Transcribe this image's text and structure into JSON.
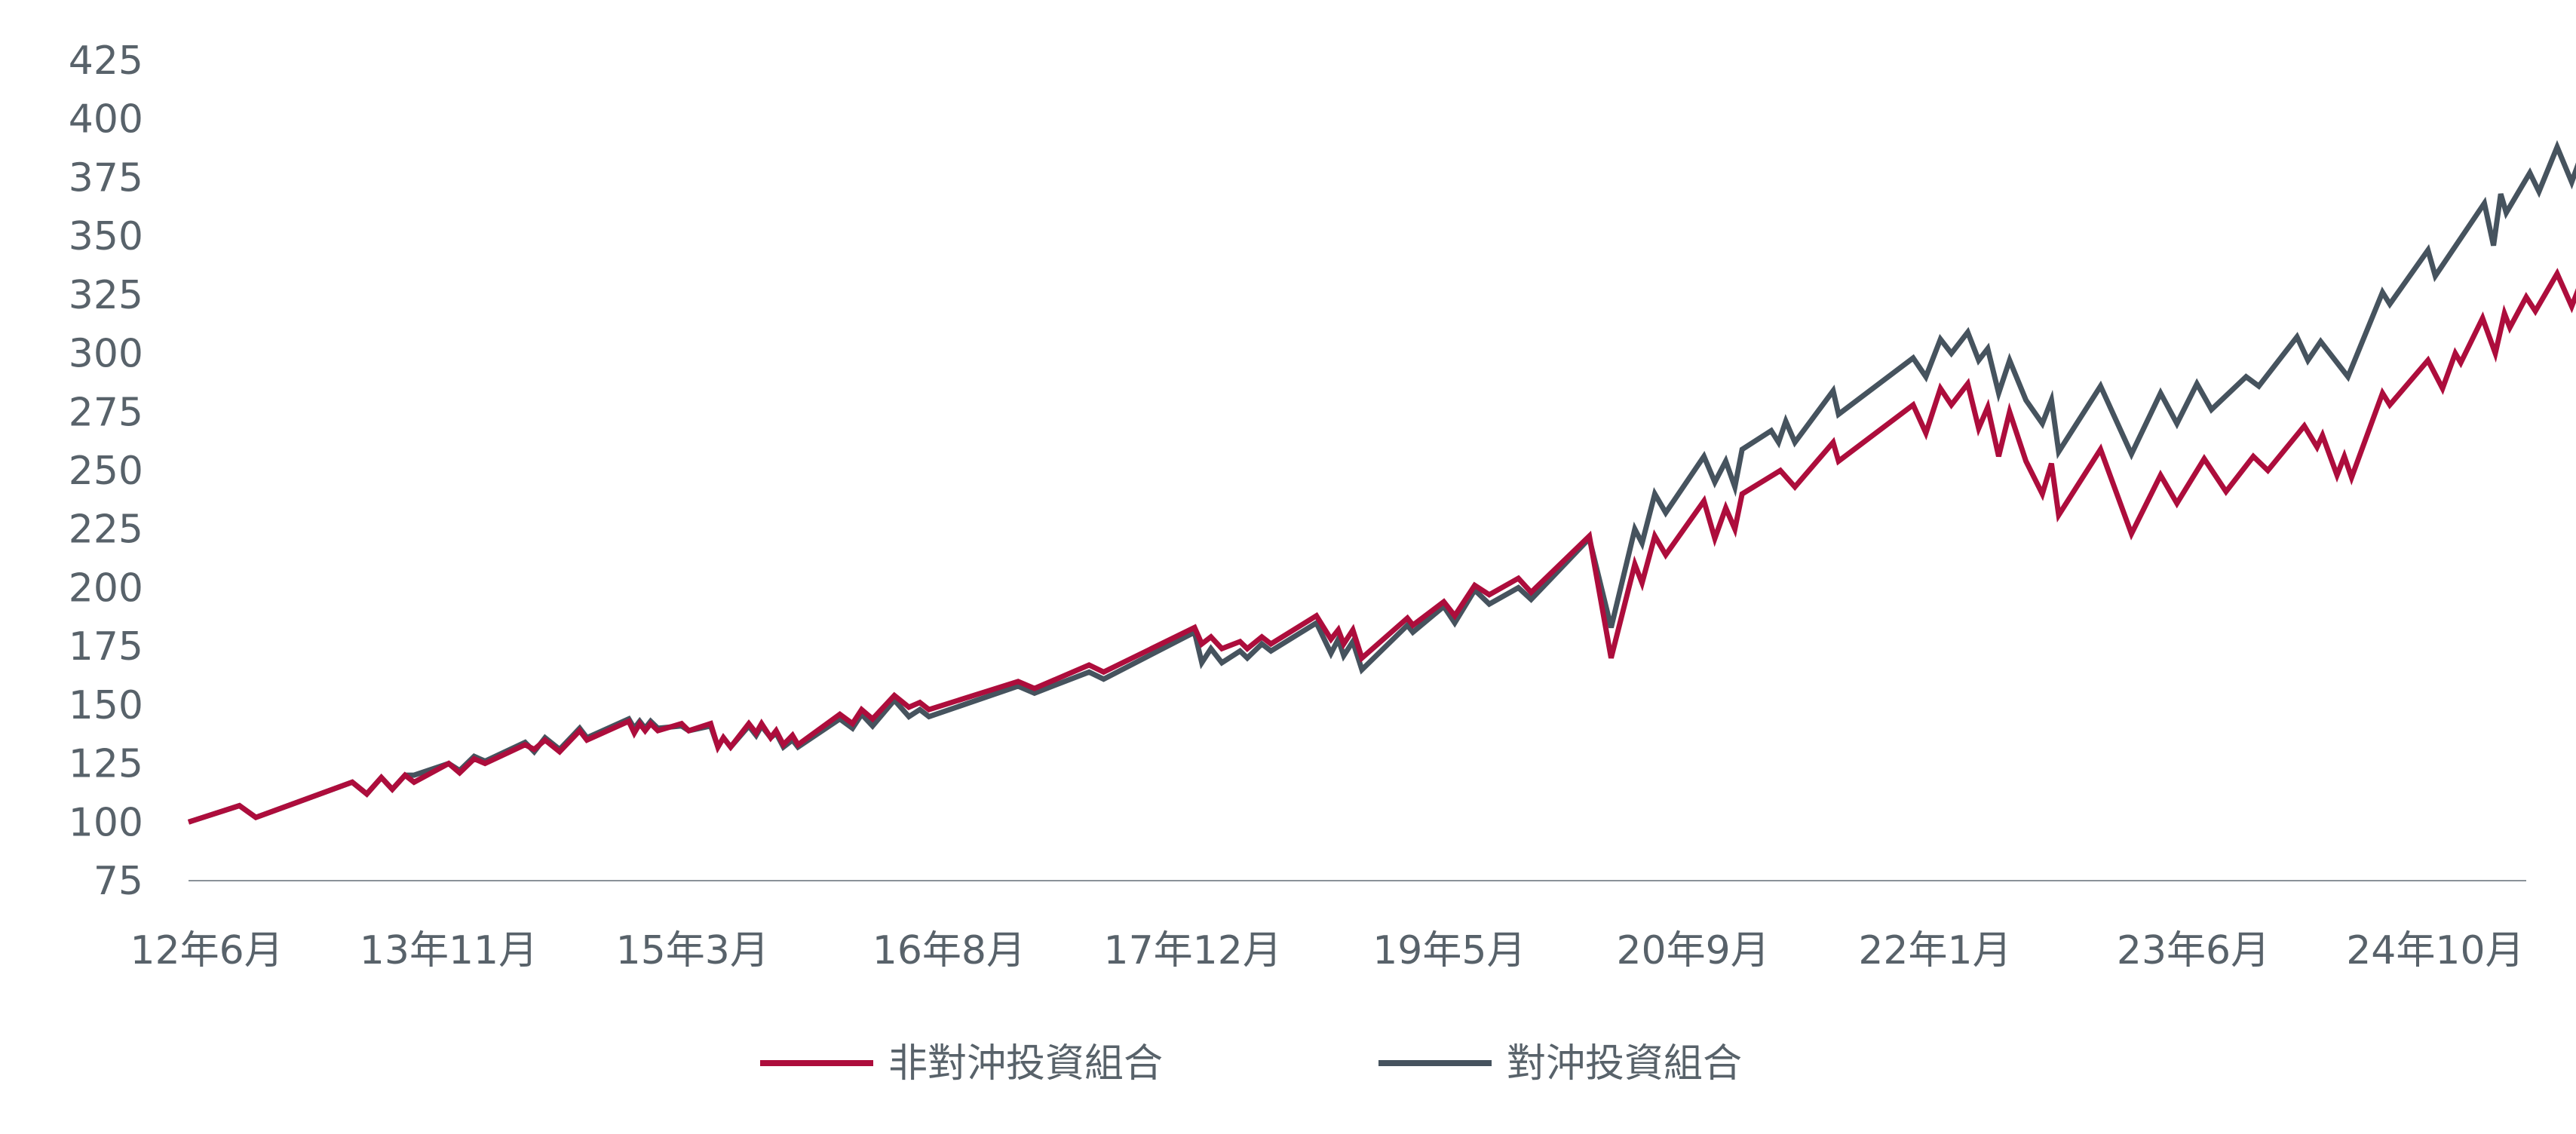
{
  "chart_data": {
    "type": "line",
    "title": "",
    "xlabel": "",
    "ylabel": "",
    "ylim": [
      75,
      425
    ],
    "yticks": [
      75,
      100,
      125,
      150,
      175,
      200,
      225,
      250,
      275,
      300,
      325,
      350,
      375,
      400,
      425
    ],
    "xlim": [
      2012.4,
      2025.25
    ],
    "xticks": [
      {
        "label": "12年6月",
        "x": 2012.5
      },
      {
        "label": "13年11月",
        "x": 2013.83
      },
      {
        "label": "15年3月",
        "x": 2015.17
      },
      {
        "label": "16年8月",
        "x": 2016.58
      },
      {
        "label": "17年12月",
        "x": 2017.92
      },
      {
        "label": "19年5月",
        "x": 2019.33
      },
      {
        "label": "20年9月",
        "x": 2020.67
      },
      {
        "label": "22年1月",
        "x": 2022.0
      },
      {
        "label": "23年6月",
        "x": 2023.42
      },
      {
        "label": "24年10月",
        "x": 2024.75
      }
    ],
    "grid": false,
    "legend_position": "bottom",
    "series": [
      {
        "name": "非對沖投資組合",
        "color": "#ad0d3c",
        "points": [
          [
            2012.4,
            100
          ],
          [
            2012.68,
            107
          ],
          [
            2012.77,
            102
          ],
          [
            2013.3,
            117
          ],
          [
            2013.38,
            112
          ],
          [
            2013.46,
            119
          ],
          [
            2013.52,
            114
          ],
          [
            2013.59,
            120
          ],
          [
            2013.64,
            117
          ],
          [
            2013.83,
            125
          ],
          [
            2013.89,
            121
          ],
          [
            2013.97,
            127
          ],
          [
            2014.03,
            125
          ],
          [
            2014.25,
            133
          ],
          [
            2014.3,
            131
          ],
          [
            2014.36,
            135
          ],
          [
            2014.44,
            130
          ],
          [
            2014.55,
            139
          ],
          [
            2014.59,
            135
          ],
          [
            2014.82,
            143
          ],
          [
            2014.85,
            138
          ],
          [
            2014.88,
            142
          ],
          [
            2014.91,
            139
          ],
          [
            2014.94,
            142
          ],
          [
            2014.98,
            139
          ],
          [
            2015.11,
            142
          ],
          [
            2015.15,
            139
          ],
          [
            2015.27,
            142
          ],
          [
            2015.31,
            132
          ],
          [
            2015.34,
            136
          ],
          [
            2015.38,
            132
          ],
          [
            2015.48,
            142
          ],
          [
            2015.52,
            138
          ],
          [
            2015.55,
            142
          ],
          [
            2015.6,
            136
          ],
          [
            2015.63,
            139
          ],
          [
            2015.67,
            133
          ],
          [
            2015.72,
            137
          ],
          [
            2015.75,
            133
          ],
          [
            2015.98,
            146
          ],
          [
            2016.05,
            142
          ],
          [
            2016.1,
            148
          ],
          [
            2016.16,
            144
          ],
          [
            2016.28,
            154
          ],
          [
            2016.36,
            149
          ],
          [
            2016.42,
            151
          ],
          [
            2016.47,
            148
          ],
          [
            2016.96,
            160
          ],
          [
            2017.05,
            157
          ],
          [
            2017.35,
            167
          ],
          [
            2017.43,
            164
          ],
          [
            2017.93,
            183
          ],
          [
            2017.97,
            176
          ],
          [
            2018.02,
            179
          ],
          [
            2018.08,
            174
          ],
          [
            2018.18,
            177
          ],
          [
            2018.22,
            174
          ],
          [
            2018.3,
            179
          ],
          [
            2018.35,
            176
          ],
          [
            2018.6,
            188
          ],
          [
            2018.68,
            178
          ],
          [
            2018.72,
            182
          ],
          [
            2018.75,
            176
          ],
          [
            2018.8,
            182
          ],
          [
            2018.85,
            170
          ],
          [
            2019.1,
            187
          ],
          [
            2019.13,
            184
          ],
          [
            2019.3,
            194
          ],
          [
            2019.36,
            188
          ],
          [
            2019.47,
            201
          ],
          [
            2019.55,
            197
          ],
          [
            2019.71,
            204
          ],
          [
            2019.78,
            198
          ],
          [
            2020.1,
            222
          ],
          [
            2020.22,
            170
          ],
          [
            2020.35,
            210
          ],
          [
            2020.39,
            202
          ],
          [
            2020.46,
            222
          ],
          [
            2020.52,
            214
          ],
          [
            2020.73,
            237
          ],
          [
            2020.79,
            221
          ],
          [
            2020.85,
            234
          ],
          [
            2020.9,
            225
          ],
          [
            2020.94,
            240
          ],
          [
            2021.15,
            250
          ],
          [
            2021.23,
            243
          ],
          [
            2021.44,
            262
          ],
          [
            2021.47,
            254
          ],
          [
            2021.88,
            278
          ],
          [
            2021.95,
            266
          ],
          [
            2022.03,
            285
          ],
          [
            2022.09,
            278
          ],
          [
            2022.18,
            287
          ],
          [
            2022.24,
            268
          ],
          [
            2022.29,
            277
          ],
          [
            2022.35,
            256
          ],
          [
            2022.41,
            275
          ],
          [
            2022.5,
            254
          ],
          [
            2022.59,
            240
          ],
          [
            2022.64,
            253
          ],
          [
            2022.68,
            231
          ],
          [
            2022.91,
            259
          ],
          [
            2023.08,
            223
          ],
          [
            2023.24,
            248
          ],
          [
            2023.33,
            236
          ],
          [
            2023.48,
            255
          ],
          [
            2023.6,
            241
          ],
          [
            2023.75,
            256
          ],
          [
            2023.83,
            250
          ],
          [
            2024.03,
            269
          ],
          [
            2024.1,
            260
          ],
          [
            2024.13,
            265
          ],
          [
            2024.21,
            248
          ],
          [
            2024.25,
            256
          ],
          [
            2024.29,
            247
          ],
          [
            2024.46,
            283
          ],
          [
            2024.5,
            278
          ],
          [
            2024.71,
            297
          ],
          [
            2024.79,
            285
          ],
          [
            2024.86,
            300
          ],
          [
            2024.89,
            296
          ],
          [
            2025.01,
            315
          ],
          [
            2025.08,
            300
          ],
          [
            2025.13,
            317
          ],
          [
            2025.16,
            311
          ],
          [
            2025.25,
            324
          ],
          [
            2025.3,
            318
          ],
          [
            2025.42,
            334
          ],
          [
            2025.5,
            320
          ],
          [
            2025.57,
            334
          ]
        ]
      },
      {
        "name": "對沖投資組合",
        "color": "#46535e",
        "points": [
          [
            2012.4,
            100
          ],
          [
            2012.68,
            107
          ],
          [
            2012.77,
            102
          ],
          [
            2013.3,
            117
          ],
          [
            2013.38,
            112
          ],
          [
            2013.46,
            119
          ],
          [
            2013.52,
            114
          ],
          [
            2013.59,
            120
          ],
          [
            2013.64,
            120
          ],
          [
            2013.83,
            125
          ],
          [
            2013.89,
            122
          ],
          [
            2013.97,
            128
          ],
          [
            2014.03,
            126
          ],
          [
            2014.25,
            134
          ],
          [
            2014.3,
            130
          ],
          [
            2014.36,
            136
          ],
          [
            2014.44,
            131
          ],
          [
            2014.55,
            140
          ],
          [
            2014.59,
            136
          ],
          [
            2014.82,
            144
          ],
          [
            2014.85,
            140
          ],
          [
            2014.88,
            143
          ],
          [
            2014.91,
            140
          ],
          [
            2014.94,
            143
          ],
          [
            2014.98,
            140
          ],
          [
            2015.11,
            141
          ],
          [
            2015.15,
            139
          ],
          [
            2015.27,
            141
          ],
          [
            2015.31,
            132
          ],
          [
            2015.34,
            136
          ],
          [
            2015.38,
            132
          ],
          [
            2015.48,
            141
          ],
          [
            2015.52,
            137
          ],
          [
            2015.55,
            141
          ],
          [
            2015.6,
            136
          ],
          [
            2015.63,
            138
          ],
          [
            2015.67,
            132
          ],
          [
            2015.72,
            135
          ],
          [
            2015.75,
            132
          ],
          [
            2015.98,
            144
          ],
          [
            2016.05,
            140
          ],
          [
            2016.1,
            146
          ],
          [
            2016.16,
            141
          ],
          [
            2016.28,
            152
          ],
          [
            2016.36,
            145
          ],
          [
            2016.42,
            148
          ],
          [
            2016.47,
            145
          ],
          [
            2016.96,
            158
          ],
          [
            2017.05,
            155
          ],
          [
            2017.35,
            164
          ],
          [
            2017.43,
            161
          ],
          [
            2017.93,
            181
          ],
          [
            2017.97,
            168
          ],
          [
            2018.02,
            174
          ],
          [
            2018.08,
            168
          ],
          [
            2018.18,
            173
          ],
          [
            2018.22,
            170
          ],
          [
            2018.3,
            176
          ],
          [
            2018.35,
            173
          ],
          [
            2018.6,
            185
          ],
          [
            2018.68,
            172
          ],
          [
            2018.72,
            178
          ],
          [
            2018.75,
            171
          ],
          [
            2018.8,
            177
          ],
          [
            2018.85,
            165
          ],
          [
            2019.1,
            184
          ],
          [
            2019.13,
            181
          ],
          [
            2019.3,
            192
          ],
          [
            2019.36,
            185
          ],
          [
            2019.47,
            199
          ],
          [
            2019.55,
            193
          ],
          [
            2019.71,
            200
          ],
          [
            2019.78,
            195
          ],
          [
            2020.1,
            221
          ],
          [
            2020.22,
            183
          ],
          [
            2020.35,
            225
          ],
          [
            2020.39,
            219
          ],
          [
            2020.46,
            240
          ],
          [
            2020.52,
            232
          ],
          [
            2020.73,
            256
          ],
          [
            2020.79,
            245
          ],
          [
            2020.85,
            254
          ],
          [
            2020.9,
            243
          ],
          [
            2020.94,
            259
          ],
          [
            2021.1,
            267
          ],
          [
            2021.14,
            262
          ],
          [
            2021.18,
            271
          ],
          [
            2021.23,
            262
          ],
          [
            2021.44,
            284
          ],
          [
            2021.47,
            274
          ],
          [
            2021.88,
            298
          ],
          [
            2021.95,
            290
          ],
          [
            2022.03,
            306
          ],
          [
            2022.09,
            300
          ],
          [
            2022.18,
            309
          ],
          [
            2022.24,
            297
          ],
          [
            2022.29,
            302
          ],
          [
            2022.35,
            283
          ],
          [
            2022.41,
            297
          ],
          [
            2022.5,
            280
          ],
          [
            2022.59,
            270
          ],
          [
            2022.64,
            280
          ],
          [
            2022.68,
            258
          ],
          [
            2022.91,
            286
          ],
          [
            2023.08,
            257
          ],
          [
            2023.24,
            283
          ],
          [
            2023.33,
            270
          ],
          [
            2023.44,
            287
          ],
          [
            2023.52,
            276
          ],
          [
            2023.71,
            290
          ],
          [
            2023.78,
            286
          ],
          [
            2023.99,
            307
          ],
          [
            2024.05,
            297
          ],
          [
            2024.12,
            305
          ],
          [
            2024.27,
            290
          ],
          [
            2024.46,
            326
          ],
          [
            2024.5,
            321
          ],
          [
            2024.71,
            344
          ],
          [
            2024.75,
            333
          ],
          [
            2025.02,
            364
          ],
          [
            2025.07,
            346
          ],
          [
            2025.11,
            368
          ],
          [
            2025.14,
            360
          ],
          [
            2025.27,
            377
          ],
          [
            2025.32,
            369
          ],
          [
            2025.42,
            388
          ],
          [
            2025.5,
            373
          ],
          [
            2025.56,
            386
          ],
          [
            2025.58,
            381
          ],
          [
            2025.6,
            388
          ]
        ]
      }
    ]
  }
}
